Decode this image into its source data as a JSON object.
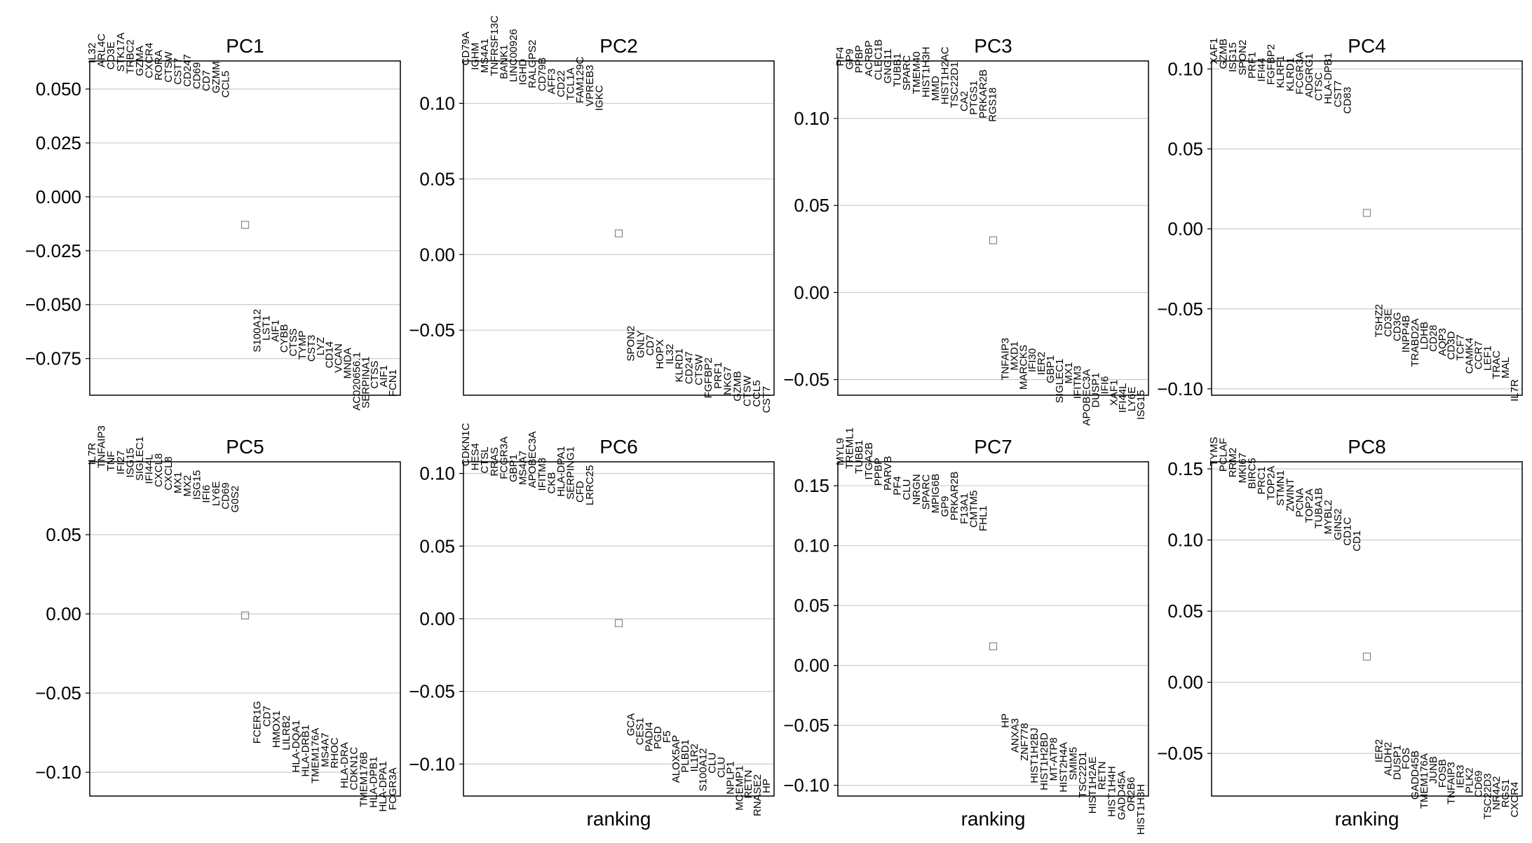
{
  "colors": {
    "frame": "#000000",
    "grid": "#cccccc",
    "marker": "#888888",
    "text": "#000000"
  },
  "chart_data": [
    {
      "type": "scatter",
      "title": "PC1",
      "xlabel": "",
      "ylim": [
        -0.092,
        0.063
      ],
      "yticks": [
        0.05,
        0.025,
        0.0,
        -0.025,
        -0.05,
        -0.075
      ],
      "yticklabels": [
        "0.050",
        "0.025",
        "0.000",
        "−0.025",
        "−0.050",
        "−0.075"
      ],
      "grid": true,
      "middle_marker_value": -0.013,
      "top_genes": [
        "IL32",
        "ARL4C",
        "CD3E",
        "STK17A",
        "TRBC2",
        "GZMA",
        "CXCR4",
        "RORA",
        "CTSW",
        "CST7",
        "CD247",
        "CD69",
        "CD7",
        "GZMM",
        "CCL5"
      ],
      "top_values": [
        0.062,
        0.06,
        0.059,
        0.058,
        0.057,
        0.056,
        0.055,
        0.054,
        0.053,
        0.052,
        0.051,
        0.05,
        0.049,
        0.048,
        0.046
      ],
      "bottom_genes": [
        "S100A12",
        "LST1",
        "AIF1",
        "CYBB",
        "CTSS",
        "TYMP",
        "CST3",
        "LYZ",
        "CD14",
        "VCAN",
        "MNDA",
        "AC020656.1",
        "SERPINA1",
        "CTSS",
        "AIF1",
        "FCN1"
      ],
      "bottom_values": [
        -0.052,
        -0.055,
        -0.057,
        -0.059,
        -0.061,
        -0.062,
        -0.064,
        -0.065,
        -0.067,
        -0.068,
        -0.07,
        -0.072,
        -0.074,
        -0.076,
        -0.078,
        -0.08
      ]
    },
    {
      "type": "scatter",
      "title": "PC2",
      "xlabel": "",
      "ylim": [
        -0.093,
        0.128
      ],
      "yticks": [
        0.1,
        0.05,
        0.0,
        -0.05
      ],
      "yticklabels": [
        "0.10",
        "0.05",
        "0.00",
        "−0.05"
      ],
      "grid": true,
      "middle_marker_value": 0.014,
      "top_genes": [
        "CD79A",
        "IGHM",
        "MS4A1",
        "TNFRSF13C",
        "BANK1",
        "LINC00926",
        "IGHD",
        "RALGPS2",
        "CD79B",
        "AFF3",
        "CD22",
        "TCL1A",
        "FAM129C",
        "VPREB3",
        "IGKC"
      ],
      "top_values": [
        0.125,
        0.122,
        0.12,
        0.118,
        0.116,
        0.114,
        0.112,
        0.11,
        0.108,
        0.106,
        0.104,
        0.102,
        0.1,
        0.098,
        0.095
      ],
      "bottom_genes": [
        "SPON2",
        "GNLY",
        "CD7",
        "HOPX",
        "IL32",
        "KLRD1",
        "CD247",
        "CTSW",
        "FGFBP2",
        "PRF1",
        "NKG7",
        "GZMB",
        "CTSW",
        "CCL5",
        "CST7"
      ],
      "bottom_values": [
        -0.047,
        -0.05,
        -0.053,
        -0.056,
        -0.059,
        -0.062,
        -0.064,
        -0.066,
        -0.068,
        -0.071,
        -0.074,
        -0.077,
        -0.08,
        -0.083,
        -0.087
      ]
    },
    {
      "type": "scatter",
      "title": "PC3",
      "xlabel": "",
      "ylim": [
        -0.059,
        0.133
      ],
      "yticks": [
        0.1,
        0.05,
        0.0,
        -0.05
      ],
      "yticklabels": [
        "0.10",
        "0.05",
        "0.00",
        "−0.05"
      ],
      "grid": true,
      "middle_marker_value": 0.03,
      "top_genes": [
        "PF4",
        "GP9",
        "PPBP",
        "ACRBP",
        "CLEC1B",
        "GNG11",
        "TUBB1",
        "SPARC",
        "TMEM40",
        "HIST1H3H",
        "MMD",
        "HIST1H2AC",
        "TSC22D1",
        "CA2",
        "PTGS1",
        "PRKAR2B",
        "RGS18"
      ],
      "top_values": [
        0.13,
        0.128,
        0.126,
        0.124,
        0.122,
        0.12,
        0.118,
        0.116,
        0.114,
        0.112,
        0.11,
        0.108,
        0.106,
        0.104,
        0.102,
        0.1,
        0.098
      ],
      "bottom_genes": [
        "TNFAIP3",
        "MXD1",
        "MARCKS",
        "IFI30",
        "IER2",
        "GBP1",
        "SIGLEC1",
        "MX1",
        "IFITM3",
        "APOBEC3A",
        "DUSP1",
        "IFI6",
        "XAF1",
        "IFI44L",
        "LY6E",
        "ISG15"
      ],
      "bottom_values": [
        -0.026,
        -0.028,
        -0.03,
        -0.032,
        -0.034,
        -0.036,
        -0.038,
        -0.04,
        -0.042,
        -0.044,
        -0.046,
        -0.048,
        -0.05,
        -0.052,
        -0.054,
        -0.056
      ]
    },
    {
      "type": "scatter",
      "title": "PC4",
      "xlabel": "",
      "ylim": [
        -0.104,
        0.105
      ],
      "yticks": [
        0.1,
        0.05,
        0.0,
        -0.05,
        -0.1
      ],
      "yticklabels": [
        "0.10",
        "0.05",
        "0.00",
        "−0.05",
        "−0.10"
      ],
      "grid": true,
      "middle_marker_value": 0.01,
      "top_genes": [
        "XAF1",
        "GZMB",
        "ISG15",
        "SPON2",
        "PRF1",
        "IFI44",
        "FGFBP2",
        "KLRF1",
        "KLRD1",
        "FCGR3A",
        "ADGRG1",
        "CTSC",
        "HLA-DPB1",
        "CST7",
        "CD83"
      ],
      "top_values": [
        0.103,
        0.1,
        0.098,
        0.096,
        0.094,
        0.092,
        0.09,
        0.088,
        0.086,
        0.084,
        0.082,
        0.08,
        0.078,
        0.076,
        0.072
      ],
      "bottom_genes": [
        "TSHZ2",
        "CD3E",
        "CD3G",
        "INPP4B",
        "TRABD2A",
        "LDHB",
        "CD28",
        "AQP3",
        "CD3D",
        "TCF7",
        "CAMK4",
        "CCR7",
        "LEF1",
        "TRAC",
        "MAL",
        "IL7R"
      ],
      "bottom_values": [
        -0.047,
        -0.05,
        -0.052,
        -0.054,
        -0.056,
        -0.058,
        -0.06,
        -0.062,
        -0.064,
        -0.066,
        -0.068,
        -0.07,
        -0.073,
        -0.076,
        -0.08,
        -0.094
      ]
    },
    {
      "type": "scatter",
      "title": "PC5",
      "xlabel": "",
      "ylim": [
        -0.115,
        0.096
      ],
      "yticks": [
        0.05,
        0.0,
        -0.05,
        -0.1
      ],
      "yticklabels": [
        "0.05",
        "0.00",
        "−0.05",
        "−0.10"
      ],
      "grid": true,
      "middle_marker_value": -0.001,
      "top_genes": [
        "IL7R",
        "TNFAIP3",
        "TNF",
        "IFI27",
        "ISG15",
        "SIGLEC1",
        "IFI44L",
        "CXCL8",
        "CXCL8",
        "MX1",
        "MX2",
        "ISG15",
        "IFI6",
        "LY6E",
        "CD69",
        "G0S2"
      ],
      "top_values": [
        0.094,
        0.092,
        0.09,
        0.088,
        0.086,
        0.084,
        0.082,
        0.08,
        0.078,
        0.076,
        0.074,
        0.072,
        0.07,
        0.068,
        0.066,
        0.064
      ],
      "bottom_genes": [
        "FCER1G",
        "CD7",
        "HMOX1",
        "LILRB2",
        "HLA-DQA1",
        "HLA-DRB1",
        "TMEM176A",
        "MS4A7",
        "RHOC",
        "HLA-DRA",
        "CDKN1C",
        "TMEM176B",
        "HLA-DPB1",
        "HLA-DPA1",
        "FCGR3A"
      ],
      "bottom_values": [
        -0.055,
        -0.058,
        -0.061,
        -0.064,
        -0.067,
        -0.07,
        -0.072,
        -0.075,
        -0.078,
        -0.081,
        -0.084,
        -0.087,
        -0.09,
        -0.093,
        -0.097
      ]
    },
    {
      "type": "scatter",
      "title": "PC6",
      "xlabel": "ranking",
      "ylim": [
        -0.122,
        0.108
      ],
      "yticks": [
        0.1,
        0.05,
        0.0,
        -0.05,
        -0.1
      ],
      "yticklabels": [
        "0.10",
        "0.05",
        "0.00",
        "−0.05",
        "−0.10"
      ],
      "grid": true,
      "middle_marker_value": -0.003,
      "top_genes": [
        "CDKN1C",
        "HES4",
        "CTSL",
        "RRAS",
        "FCGR3A",
        "GBP1",
        "MS4A7",
        "APOBEC3A",
        "IFITM3",
        "CKB",
        "HLA-DPA1",
        "SERPING1",
        "CFD",
        "LRRC25"
      ],
      "top_values": [
        0.105,
        0.102,
        0.1,
        0.098,
        0.096,
        0.094,
        0.092,
        0.09,
        0.088,
        0.086,
        0.084,
        0.082,
        0.08,
        0.078
      ],
      "bottom_genes": [
        "GCA",
        "CES1",
        "PADI4",
        "PGD",
        "F5",
        "ALOX5AP",
        "PLBD1",
        "IL1R2",
        "S100A12",
        "CLU",
        "CLU",
        "NPLP1",
        "MCEMP1",
        "RETN",
        "RNASE2",
        "HP"
      ],
      "bottom_values": [
        -0.065,
        -0.068,
        -0.071,
        -0.074,
        -0.077,
        -0.08,
        -0.083,
        -0.086,
        -0.089,
        -0.092,
        -0.095,
        -0.098,
        -0.101,
        -0.104,
        -0.107,
        -0.11
      ]
    },
    {
      "type": "scatter",
      "title": "PC7",
      "xlabel": "ranking",
      "ylim": [
        -0.109,
        0.17
      ],
      "yticks": [
        0.15,
        0.1,
        0.05,
        0.0,
        -0.05,
        -0.1
      ],
      "yticklabels": [
        "0.15",
        "0.10",
        "0.05",
        "0.00",
        "−0.05",
        "−0.10"
      ],
      "grid": true,
      "middle_marker_value": 0.016,
      "top_genes": [
        "MYL9",
        "TREML1",
        "TUBB1",
        "ITGA2B",
        "PPBP",
        "PARVB",
        "PF4",
        "CLU",
        "NRGN",
        "SPARC",
        "MPIG6B",
        "GP9",
        "PRKAR2B",
        "F13A1",
        "CMTM5",
        "FHL1"
      ],
      "top_values": [
        0.167,
        0.164,
        0.16,
        0.155,
        0.15,
        0.146,
        0.142,
        0.138,
        0.134,
        0.13,
        0.127,
        0.124,
        0.121,
        0.118,
        0.115,
        0.112
      ],
      "bottom_genes": [
        "HP",
        "ANXA3",
        "ZNF778",
        "HIST1H2BJ",
        "HIST1H2BD",
        "MT-ATP8",
        "HIST2H4A",
        "SMIM5",
        "TSC22D1",
        "HIST1H2AE",
        "RETN",
        "HIST1H4H",
        "GADD45A",
        "OR2B6",
        "HIST1H3H"
      ],
      "bottom_values": [
        -0.04,
        -0.044,
        -0.048,
        -0.052,
        -0.056,
        -0.06,
        -0.064,
        -0.068,
        -0.072,
        -0.076,
        -0.08,
        -0.084,
        -0.088,
        -0.093,
        -0.099
      ]
    },
    {
      "type": "scatter",
      "title": "PC8",
      "xlabel": "ranking",
      "ylim": [
        -0.08,
        0.155
      ],
      "yticks": [
        0.15,
        0.1,
        0.05,
        0.0,
        -0.05
      ],
      "yticklabels": [
        "0.15",
        "0.10",
        "0.05",
        "0.00",
        "−0.05"
      ],
      "grid": true,
      "middle_marker_value": 0.018,
      "top_genes": [
        "TYMS",
        "PCLAF",
        "RRM2",
        "MKI67",
        "BIRC5",
        "PRC1",
        "TOP2A",
        "STMN1",
        "ZWINT",
        "PCNA",
        "TOP2A",
        "TUBA1B",
        "MYBL2",
        "GINS2",
        "CD1C",
        "CD1"
      ],
      "top_values": [
        0.152,
        0.148,
        0.144,
        0.14,
        0.136,
        0.132,
        0.128,
        0.124,
        0.12,
        0.116,
        0.112,
        0.108,
        0.104,
        0.1,
        0.096,
        0.092
      ],
      "bottom_genes": [
        "IER2",
        "ALDH2",
        "DUSP1",
        "FOS",
        "GADD45B",
        "TMEM176A",
        "JUNB",
        "FOSB",
        "TNFAIP3",
        "IER3",
        "PLK2",
        "CD69",
        "TSC22D3",
        "NR4A2",
        "RGS1",
        "CXCR4"
      ],
      "bottom_values": [
        -0.04,
        -0.042,
        -0.044,
        -0.046,
        -0.048,
        -0.05,
        -0.052,
        -0.054,
        -0.056,
        -0.058,
        -0.06,
        -0.062,
        -0.064,
        -0.066,
        -0.068,
        -0.07
      ]
    }
  ]
}
